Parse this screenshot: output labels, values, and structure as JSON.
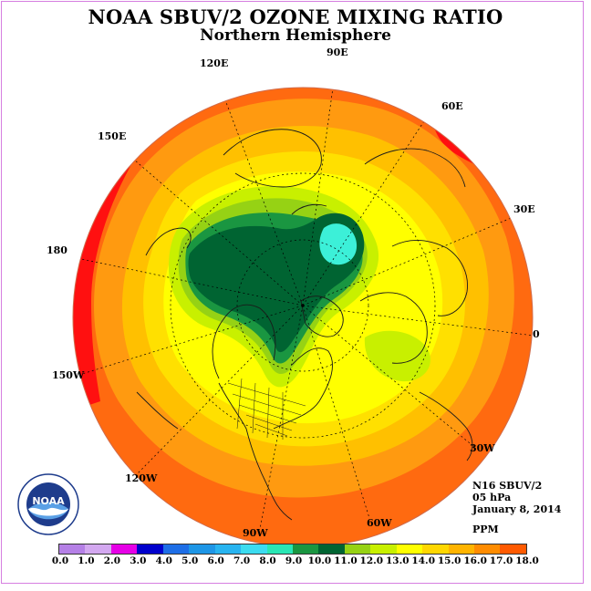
{
  "title": "NOAA SBUV/2 OZONE MIXING RATIO",
  "subtitle": "Northern Hemisphere",
  "longitude_labels": [
    {
      "id": "90e",
      "text": "90E"
    },
    {
      "id": "120e",
      "text": "120E"
    },
    {
      "id": "60e",
      "text": "60E"
    },
    {
      "id": "150e",
      "text": "150E"
    },
    {
      "id": "30e",
      "text": "30E"
    },
    {
      "id": "180",
      "text": "180"
    },
    {
      "id": "0",
      "text": "0"
    },
    {
      "id": "150w",
      "text": "150W"
    },
    {
      "id": "30w",
      "text": "30W"
    },
    {
      "id": "120w",
      "text": "120W"
    },
    {
      "id": "60w",
      "text": "60W"
    },
    {
      "id": "90w",
      "text": "90W"
    }
  ],
  "info": {
    "instrument": "N16 SBUV/2",
    "level": "05 hPa",
    "date": "January 8, 2014"
  },
  "units": "PPM",
  "logo_text": "NOAA",
  "colorbar": {
    "colors": [
      "#b580e6",
      "#d3a8f0",
      "#e600e6",
      "#0000cc",
      "#1e6ee6",
      "#1e96e6",
      "#28b4f0",
      "#3cdcf0",
      "#29e6b4",
      "#1a9641",
      "#006432",
      "#96d214",
      "#c8f000",
      "#ffff00",
      "#ffd700",
      "#ffb400",
      "#ff8c00",
      "#ff5a00",
      "#e60000",
      "#8c5a3c"
    ],
    "labels": [
      "0.0",
      "1.0",
      "2.0",
      "3.0",
      "4.0",
      "5.0",
      "6.0",
      "7.0",
      "8.0",
      "9.0",
      "10.0",
      "11.0",
      "12.0",
      "13.0",
      "14.0",
      "15.0",
      "16.0",
      "17.0",
      "18.0"
    ]
  },
  "map": {
    "projection": "north-polar-stereographic",
    "palette": {
      "ocean_outer": "#ff6a10",
      "band_15": "#ff9a10",
      "band_14": "#ffc000",
      "band_13": "#ffe000",
      "band_12": "#ffff00",
      "band_11": "#c8f000",
      "band_10": "#96d214",
      "band_9": "#1a9641",
      "band_8": "#006432",
      "high_cyan": "#3cf0d8",
      "red_max": "#ff1010"
    }
  }
}
